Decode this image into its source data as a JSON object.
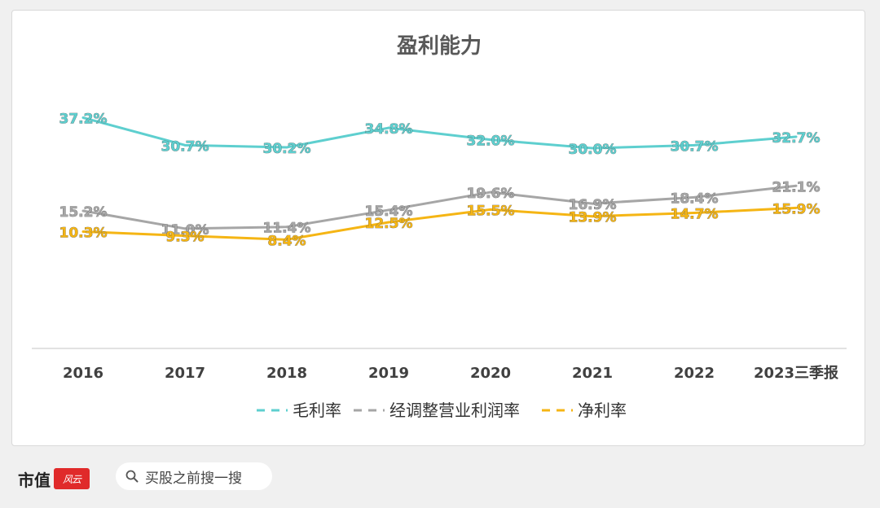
{
  "chart_data": {
    "type": "line",
    "title": "盈利能力",
    "categories": [
      "2016",
      "2017",
      "2018",
      "2019",
      "2020",
      "2021",
      "2022",
      "2023三季报"
    ],
    "series": [
      {
        "name": "毛利率",
        "color": "#5ecfcf",
        "values": [
          37.2,
          30.7,
          30.2,
          34.8,
          32.0,
          30.0,
          30.7,
          32.7
        ],
        "labels": [
          "37.2%",
          "30.7%",
          "30.2%",
          "34.8%",
          "32.0%",
          "30.0%",
          "30.7%",
          "32.7%"
        ]
      },
      {
        "name": "经调整营业利润率",
        "color": "#a6a6a6",
        "values": [
          15.2,
          11.0,
          11.4,
          15.4,
          19.6,
          16.9,
          18.4,
          21.1
        ],
        "labels": [
          "15.2%",
          "11.0%",
          "11.4%",
          "15.4%",
          "19.6%",
          "16.9%",
          "18.4%",
          "21.1%"
        ]
      },
      {
        "name": "净利率",
        "color": "#f5b514",
        "values": [
          10.3,
          9.3,
          8.4,
          12.5,
          15.5,
          13.9,
          14.7,
          15.9
        ],
        "labels": [
          "10.3%",
          "9.3%",
          "8.4%",
          "12.5%",
          "15.5%",
          "13.9%",
          "14.7%",
          "15.9%"
        ]
      }
    ],
    "grid": false,
    "legend": "bottom",
    "y_axis_visible": false
  },
  "footer": {
    "brand": "市值",
    "search_placeholder": "买股之前搜一搜",
    "search_icon": "search-icon"
  }
}
